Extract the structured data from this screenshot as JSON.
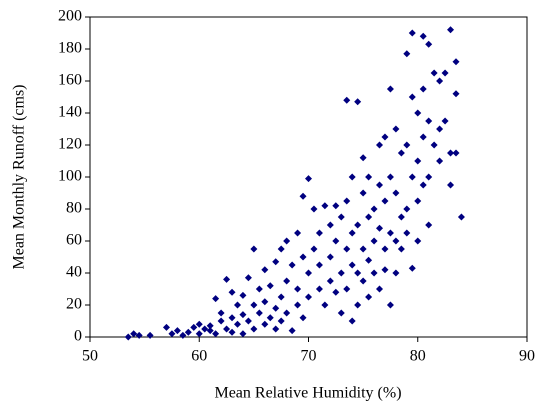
{
  "chart_data": {
    "type": "scatter",
    "xlabel": "Mean Relative Humidity (%)",
    "ylabel": "Mean Monthly Runoff (cms)",
    "xlim": [
      50,
      90
    ],
    "xticks": [
      50,
      60,
      70,
      80,
      90
    ],
    "ylim": [
      0,
      200
    ],
    "yticks": [
      0,
      20,
      40,
      60,
      80,
      100,
      120,
      140,
      160,
      180,
      200
    ],
    "color": "#000080",
    "x": [
      53.5,
      54,
      54.5,
      55.5,
      57,
      57.5,
      58,
      58.5,
      59,
      59.5,
      60,
      60,
      60.5,
      61,
      61,
      61.5,
      61.5,
      62,
      62,
      62.5,
      62.5,
      63,
      63,
      63,
      63.5,
      63.5,
      64,
      64,
      64,
      64.5,
      64.5,
      65,
      65,
      65,
      65.5,
      65.5,
      66,
      66,
      66,
      66.5,
      66.5,
      67,
      67,
      67,
      67.5,
      67.5,
      67.5,
      68,
      68,
      68,
      68.5,
      68.5,
      69,
      69,
      69,
      69.5,
      69.5,
      69.5,
      70,
      70,
      70,
      70.5,
      70.5,
      71,
      71,
      71,
      71.5,
      71.5,
      72,
      72,
      72,
      72.5,
      72.5,
      72.5,
      73,
      73,
      73,
      73.5,
      73.5,
      73.5,
      73.5,
      74,
      74,
      74,
      74,
      74.5,
      74.5,
      74.5,
      74.5,
      75,
      75,
      75,
      75,
      75.5,
      75.5,
      75.5,
      75.5,
      76,
      76,
      76,
      76.5,
      76.5,
      76.5,
      76.5,
      77,
      77,
      77,
      77,
      77.5,
      77.5,
      77.5,
      77.5,
      78,
      78,
      78,
      78,
      78.5,
      78.5,
      78.5,
      79,
      79,
      79,
      79,
      79.5,
      79.5,
      79.5,
      79.5,
      80,
      80,
      80,
      80,
      80.5,
      80.5,
      80.5,
      80.5,
      81,
      81,
      81,
      81,
      81.5,
      81.5,
      82,
      82,
      82,
      82.5,
      82.5,
      83,
      83,
      83,
      83.5,
      83.5,
      83.5,
      84
    ],
    "y": [
      0,
      2,
      1,
      1,
      6,
      2,
      4,
      1,
      3,
      6,
      8,
      2,
      5,
      4,
      7,
      24,
      2,
      10,
      15,
      5,
      36,
      12,
      28,
      3,
      20,
      8,
      14,
      26,
      2,
      37,
      10,
      5,
      55,
      20,
      30,
      15,
      8,
      22,
      42,
      12,
      32,
      5,
      47,
      18,
      55,
      25,
      10,
      60,
      35,
      15,
      4,
      45,
      30,
      65,
      20,
      88,
      50,
      12,
      99,
      40,
      25,
      80,
      55,
      30,
      65,
      45,
      82,
      20,
      70,
      50,
      35,
      82,
      60,
      28,
      40,
      75,
      15,
      148,
      55,
      30,
      85,
      100,
      65,
      45,
      10,
      147,
      70,
      40,
      20,
      112,
      90,
      55,
      35,
      100,
      75,
      48,
      25,
      80,
      60,
      40,
      120,
      95,
      68,
      30,
      125,
      85,
      55,
      42,
      155,
      100,
      65,
      20,
      130,
      90,
      60,
      40,
      115,
      75,
      55,
      177,
      120,
      80,
      65,
      190,
      150,
      100,
      43,
      140,
      110,
      85,
      60,
      188,
      155,
      125,
      95,
      183,
      135,
      100,
      70,
      165,
      120,
      160,
      130,
      110,
      165,
      135,
      192,
      115,
      95,
      172,
      152,
      115,
      75
    ]
  }
}
